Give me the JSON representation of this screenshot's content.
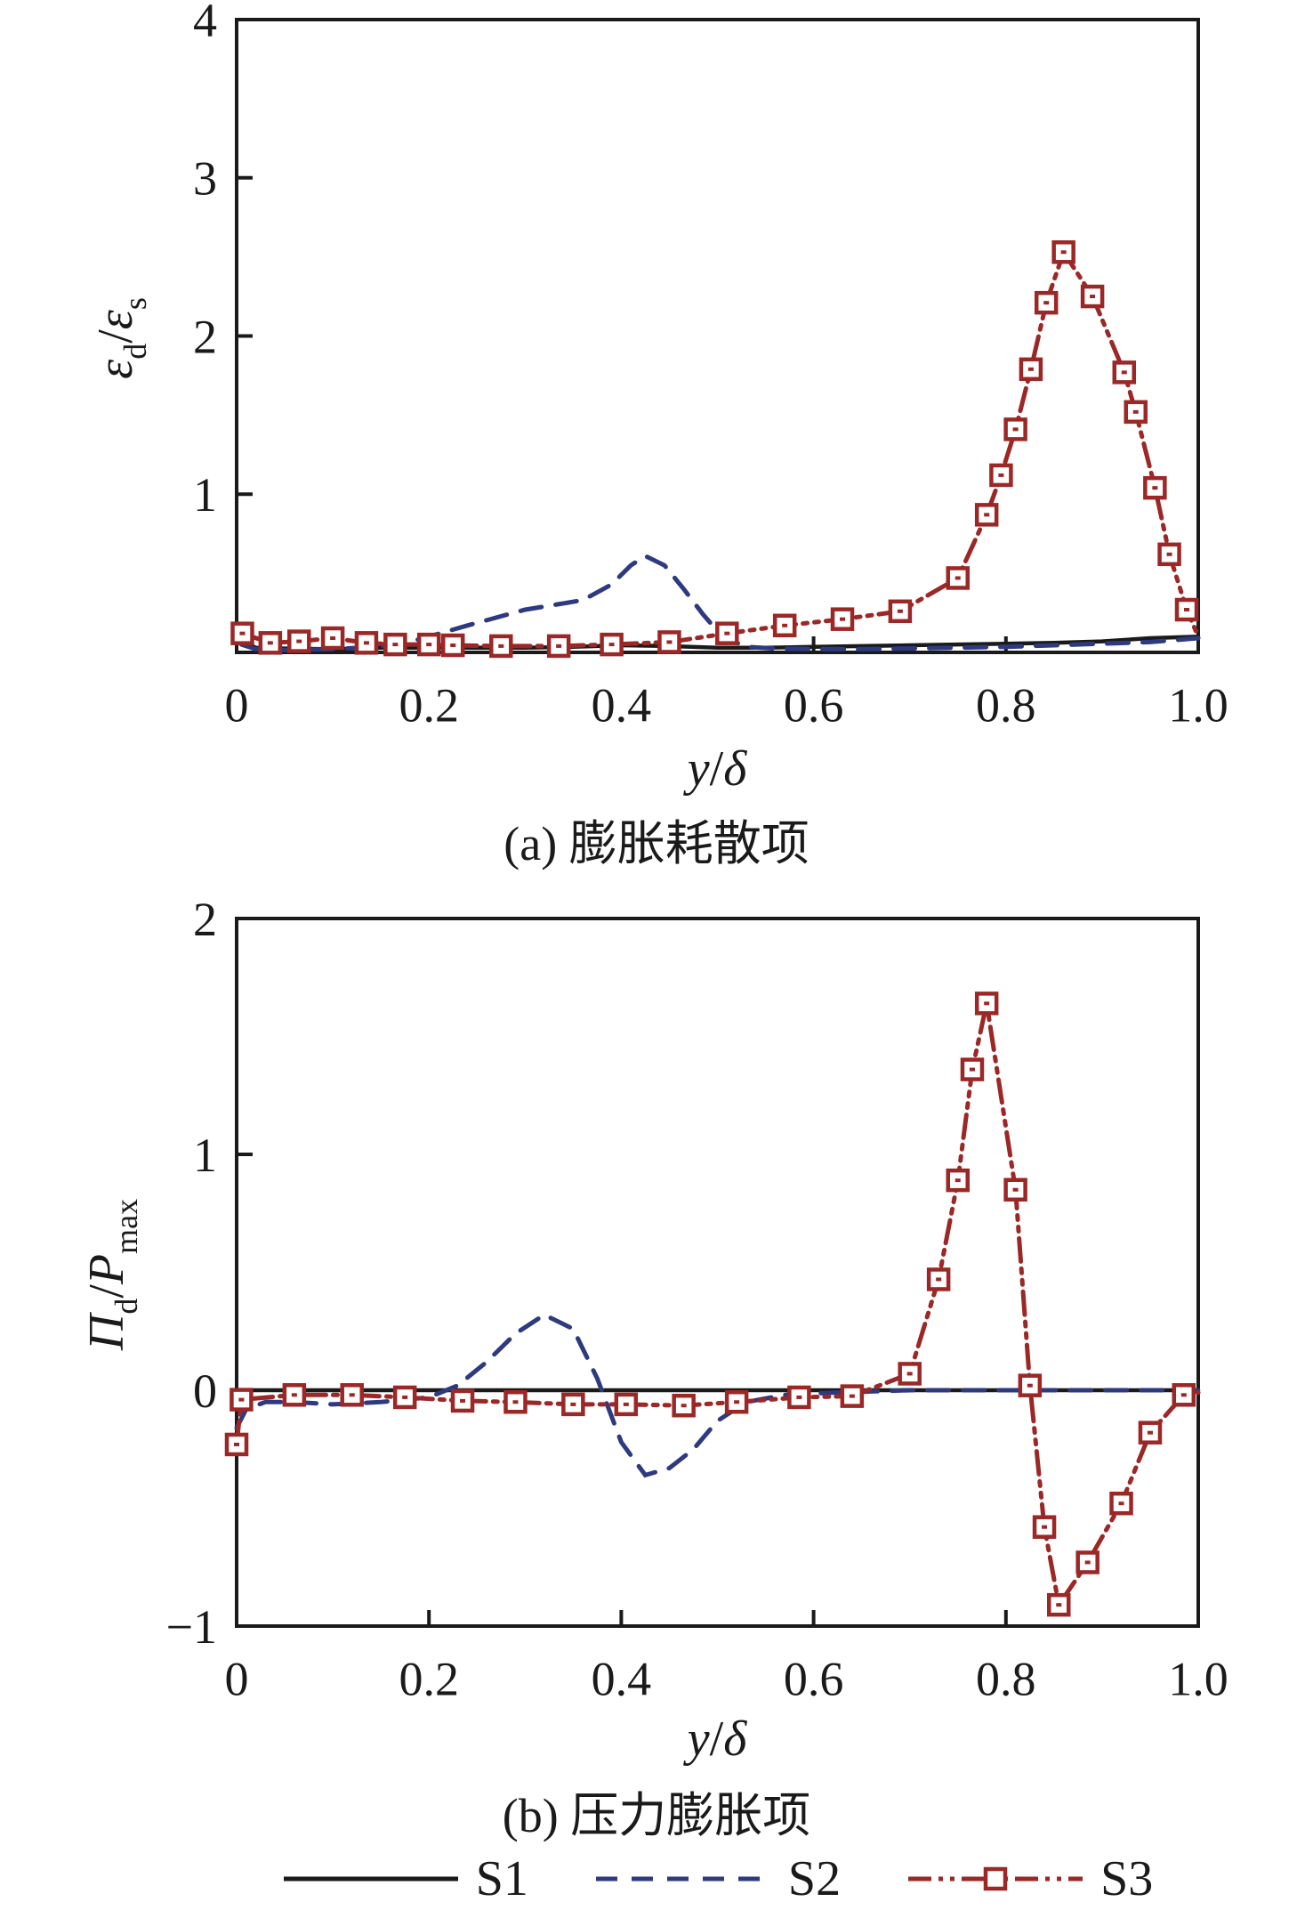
{
  "page": {
    "background": "#ffffff"
  },
  "colors": {
    "axis": "#1a1a1a",
    "s1": "#1a1a1a",
    "s2": "#2e3a80",
    "s3": "#9b2826"
  },
  "legend": {
    "position": "bottom-center",
    "items": [
      {
        "id": "s1",
        "label": "S1",
        "line": "solid",
        "color": "#1a1a1a",
        "marker": "none"
      },
      {
        "id": "s2",
        "label": "S2",
        "line": "dashed",
        "color": "#2e3a80",
        "marker": "none"
      },
      {
        "id": "s3",
        "label": "S3",
        "line": "dashdotdot",
        "color": "#9b2826",
        "marker": "square"
      }
    ]
  },
  "chart_data": [
    {
      "id": "a",
      "type": "line",
      "caption": "(a) 膨胀耗散项",
      "xlabel": "y/δ",
      "ylabel": "εd/εs",
      "xlabel_segments": [
        {
          "text": "y",
          "italic": true
        },
        {
          "text": "/"
        },
        {
          "text": "δ",
          "italic": true
        }
      ],
      "ylabel_segments": [
        {
          "text": "ε",
          "italic": true
        },
        {
          "text": "d",
          "sub": true
        },
        {
          "text": "/"
        },
        {
          "text": "ε",
          "italic": true
        },
        {
          "text": "s",
          "sub": true
        }
      ],
      "xlim": [
        0,
        1.0
      ],
      "ylim": [
        0,
        4
      ],
      "grid": false,
      "xticks": [
        {
          "v": 0,
          "label": "0"
        },
        {
          "v": 0.2,
          "label": "0.2"
        },
        {
          "v": 0.4,
          "label": "0.4"
        },
        {
          "v": 0.6,
          "label": "0.6"
        },
        {
          "v": 0.8,
          "label": "0.8"
        },
        {
          "v": 1.0,
          "label": "1.0"
        }
      ],
      "yticks": [
        {
          "v": 1,
          "label": "1"
        },
        {
          "v": 2,
          "label": "2"
        },
        {
          "v": 3,
          "label": "3"
        },
        {
          "v": 4,
          "label": "4"
        }
      ],
      "series": [
        {
          "name": "S1",
          "color": "#1a1a1a",
          "style": "solid",
          "marker": "none",
          "x": [
            0.005,
            0.02,
            0.05,
            0.1,
            0.15,
            0.2,
            0.25,
            0.3,
            0.35,
            0.4,
            0.45,
            0.5,
            0.55,
            0.6,
            0.65,
            0.7,
            0.75,
            0.8,
            0.85,
            0.9,
            0.95,
            1.0
          ],
          "y": [
            0.07,
            0.03,
            0.025,
            0.02,
            0.03,
            0.03,
            0.03,
            0.03,
            0.035,
            0.045,
            0.04,
            0.03,
            0.03,
            0.035,
            0.04,
            0.045,
            0.05,
            0.055,
            0.06,
            0.07,
            0.09,
            0.1
          ]
        },
        {
          "name": "S2",
          "color": "#2e3a80",
          "style": "dashed",
          "marker": "none",
          "x": [
            0.005,
            0.02,
            0.05,
            0.1,
            0.13,
            0.17,
            0.2,
            0.24,
            0.27,
            0.3,
            0.33,
            0.36,
            0.39,
            0.41,
            0.425,
            0.445,
            0.465,
            0.485,
            0.505,
            0.53,
            0.56,
            0.6,
            0.65,
            0.7,
            0.75,
            0.8,
            0.85,
            0.9,
            0.95,
            1.0
          ],
          "y": [
            0.05,
            0.02,
            0.015,
            0.02,
            0.03,
            0.05,
            0.1,
            0.17,
            0.22,
            0.27,
            0.3,
            0.33,
            0.43,
            0.55,
            0.61,
            0.55,
            0.4,
            0.24,
            0.1,
            0.035,
            0.025,
            0.02,
            0.02,
            0.025,
            0.03,
            0.035,
            0.045,
            0.055,
            0.065,
            0.09
          ]
        },
        {
          "name": "S3",
          "color": "#9b2826",
          "style": "dashdotdot",
          "marker": "square",
          "x": [
            0.006,
            0.035,
            0.065,
            0.1,
            0.135,
            0.165,
            0.2,
            0.225,
            0.275,
            0.335,
            0.39,
            0.45,
            0.51,
            0.57,
            0.63,
            0.69,
            0.75,
            0.78,
            0.795,
            0.81,
            0.826,
            0.842,
            0.86,
            0.89,
            0.923,
            0.935,
            0.955,
            0.97,
            0.988,
            1.0
          ],
          "y": [
            0.12,
            0.06,
            0.07,
            0.09,
            0.06,
            0.05,
            0.05,
            0.045,
            0.04,
            0.04,
            0.05,
            0.065,
            0.12,
            0.17,
            0.21,
            0.26,
            0.47,
            0.87,
            1.12,
            1.41,
            1.79,
            2.21,
            2.53,
            2.25,
            1.77,
            1.52,
            1.04,
            0.62,
            0.27,
            0.1
          ],
          "mx": [
            0.006,
            0.035,
            0.065,
            0.1,
            0.135,
            0.165,
            0.2,
            0.225,
            0.275,
            0.335,
            0.39,
            0.45,
            0.51,
            0.57,
            0.63,
            0.69,
            0.75,
            0.78,
            0.795,
            0.81,
            0.826,
            0.842,
            0.86,
            0.89,
            0.923,
            0.935,
            0.955,
            0.97,
            0.988
          ],
          "my": [
            0.12,
            0.06,
            0.07,
            0.09,
            0.06,
            0.05,
            0.05,
            0.045,
            0.04,
            0.04,
            0.05,
            0.065,
            0.12,
            0.17,
            0.21,
            0.26,
            0.47,
            0.87,
            1.12,
            1.41,
            1.79,
            2.21,
            2.53,
            2.25,
            1.77,
            1.52,
            1.04,
            0.62,
            0.27
          ]
        }
      ]
    },
    {
      "id": "b",
      "type": "line",
      "caption": "(b) 压力膨胀项",
      "xlabel": "y/δ",
      "ylabel": "Πd/Pmax",
      "xlabel_segments": [
        {
          "text": "y",
          "italic": true
        },
        {
          "text": "/"
        },
        {
          "text": "δ",
          "italic": true
        }
      ],
      "ylabel_segments": [
        {
          "text": "Π",
          "italic": true
        },
        {
          "text": "d",
          "sub": true
        },
        {
          "text": "/"
        },
        {
          "text": "P",
          "italic": true
        },
        {
          "text": "max",
          "sub": true
        }
      ],
      "xlim": [
        0,
        1.0
      ],
      "ylim": [
        -1,
        2
      ],
      "grid": false,
      "xticks": [
        {
          "v": 0,
          "label": "0"
        },
        {
          "v": 0.2,
          "label": "0.2"
        },
        {
          "v": 0.4,
          "label": "0.4"
        },
        {
          "v": 0.6,
          "label": "0.6"
        },
        {
          "v": 0.8,
          "label": "0.8"
        },
        {
          "v": 1.0,
          "label": "1.0"
        }
      ],
      "yticks": [
        {
          "v": -1,
          "label": "−1"
        },
        {
          "v": 0,
          "label": "0"
        },
        {
          "v": 1,
          "label": "1"
        },
        {
          "v": 2,
          "label": "2"
        }
      ],
      "series": [
        {
          "name": "S1",
          "color": "#1a1a1a",
          "style": "solid",
          "marker": "none",
          "x": [
            0,
            1.0
          ],
          "y": [
            0,
            0
          ]
        },
        {
          "name": "S2",
          "color": "#2e3a80",
          "style": "dashed",
          "marker": "none",
          "x": [
            0.0,
            0.01,
            0.03,
            0.06,
            0.1,
            0.15,
            0.2,
            0.23,
            0.26,
            0.29,
            0.32,
            0.35,
            0.375,
            0.4,
            0.425,
            0.45,
            0.475,
            0.5,
            0.53,
            0.57,
            0.62,
            0.7,
            0.8,
            0.9,
            1.0
          ],
          "y": [
            -0.16,
            -0.08,
            -0.05,
            -0.05,
            -0.06,
            -0.05,
            -0.03,
            0.02,
            0.12,
            0.24,
            0.32,
            0.26,
            0.05,
            -0.22,
            -0.36,
            -0.33,
            -0.25,
            -0.13,
            -0.05,
            -0.02,
            -0.01,
            0.0,
            0.0,
            0.0,
            0.0
          ]
        },
        {
          "name": "S3",
          "color": "#9b2826",
          "style": "dashdotdot",
          "marker": "square",
          "x": [
            0.0,
            0.005,
            0.06,
            0.12,
            0.175,
            0.235,
            0.29,
            0.35,
            0.405,
            0.465,
            0.52,
            0.585,
            0.64,
            0.7,
            0.73,
            0.75,
            0.765,
            0.78,
            0.81,
            0.825,
            0.84,
            0.855,
            0.885,
            0.92,
            0.95,
            0.985,
            1.0
          ],
          "y": [
            -0.23,
            -0.04,
            -0.02,
            -0.02,
            -0.03,
            -0.045,
            -0.05,
            -0.06,
            -0.06,
            -0.065,
            -0.05,
            -0.03,
            -0.025,
            0.07,
            0.47,
            0.89,
            1.36,
            1.64,
            0.85,
            0.02,
            -0.58,
            -0.91,
            -0.73,
            -0.48,
            -0.18,
            -0.02,
            -0.01
          ],
          "mx": [
            0.0,
            0.005,
            0.06,
            0.12,
            0.175,
            0.235,
            0.29,
            0.35,
            0.405,
            0.465,
            0.52,
            0.585,
            0.64,
            0.7,
            0.73,
            0.75,
            0.765,
            0.78,
            0.81,
            0.825,
            0.84,
            0.855,
            0.885,
            0.92,
            0.95,
            0.985
          ],
          "my": [
            -0.23,
            -0.04,
            -0.02,
            -0.02,
            -0.03,
            -0.045,
            -0.05,
            -0.06,
            -0.06,
            -0.065,
            -0.05,
            -0.03,
            -0.025,
            0.07,
            0.47,
            0.89,
            1.36,
            1.64,
            0.85,
            0.02,
            -0.58,
            -0.91,
            -0.73,
            -0.48,
            -0.18,
            -0.02
          ]
        }
      ]
    }
  ]
}
